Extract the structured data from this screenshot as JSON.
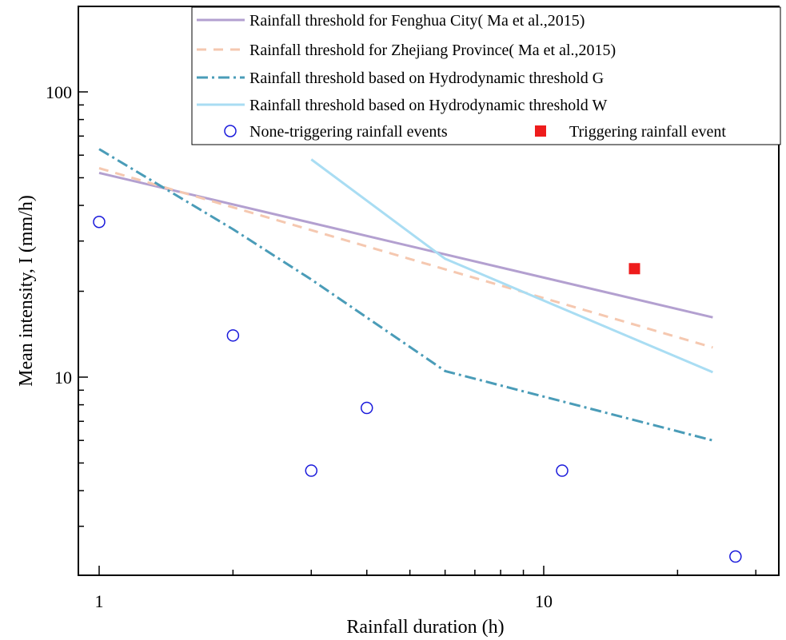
{
  "chart_data": {
    "type": "line",
    "xlabel": "Rainfall duration (h)",
    "ylabel": "Mean intensity, I (mm/h)",
    "x_scale": "log",
    "y_scale": "log",
    "xlim": [
      0.85,
      40
    ],
    "ylim": [
      2.2,
      200
    ],
    "x_ticks": [
      {
        "value": 1,
        "label": "1"
      },
      {
        "value": 10,
        "label": "10"
      }
    ],
    "y_ticks": [
      {
        "value": 10,
        "label": "10"
      },
      {
        "value": 100,
        "label": "100"
      }
    ],
    "grid": false,
    "legend_position": "top-right",
    "series": [
      {
        "name": "Rainfall threshold for Fenghua City( Ma et al.,2015)",
        "color": "#b3a0d0",
        "style": "solid",
        "x": [
          1,
          24
        ],
        "y": [
          52,
          16.2
        ]
      },
      {
        "name": "Rainfall threshold for Zhejiang Province( Ma et al.,2015)",
        "color": "#f5c8b0",
        "style": "dashed",
        "x": [
          1,
          24
        ],
        "y": [
          54,
          12.7
        ]
      },
      {
        "name": "Rainfall threshold based on Hydrodynamic threshold G",
        "color": "#4a9cb8",
        "style": "dashdot",
        "x": [
          1,
          2,
          3,
          6,
          24
        ],
        "y": [
          63,
          33,
          22,
          10.5,
          6
        ]
      },
      {
        "name": "Rainfall threshold based on Hydrodynamic threshold W",
        "color": "#a9ddf3",
        "style": "solid",
        "x": [
          3,
          6,
          24
        ],
        "y": [
          58,
          26,
          10.4
        ]
      }
    ],
    "points": [
      {
        "name": "None-triggering rainfall events",
        "marker": "circle",
        "color": "#1a1adb",
        "x": [
          1,
          2,
          3,
          4,
          11,
          27
        ],
        "y": [
          35,
          14,
          4.7,
          7.8,
          4.7,
          2.35
        ]
      },
      {
        "name": "Triggering rainfall event",
        "marker": "square",
        "color": "#ee1c1c",
        "x": [
          16
        ],
        "y": [
          24
        ]
      }
    ]
  }
}
